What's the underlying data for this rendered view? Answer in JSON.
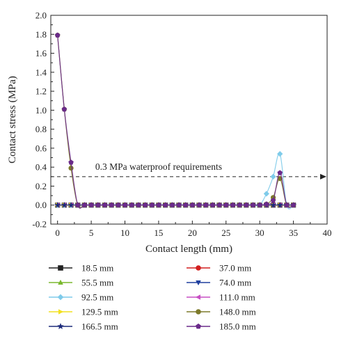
{
  "chart_data": {
    "type": "line",
    "xlabel": "Contact length (mm)",
    "ylabel": "Contact stress (MPa)",
    "xlim": [
      -1,
      40
    ],
    "ylim": [
      -0.2,
      2.0
    ],
    "xticks": [
      0,
      5,
      10,
      15,
      20,
      25,
      30,
      35,
      40
    ],
    "yticks": [
      -0.2,
      0.0,
      0.2,
      0.4,
      0.6,
      0.8,
      1.0,
      1.2,
      1.4,
      1.6,
      1.8,
      2.0
    ],
    "xtick_labels": [
      "0",
      "5",
      "10",
      "15",
      "20",
      "25",
      "30",
      "35",
      "40"
    ],
    "ytick_labels": [
      "-0.2",
      "0.0",
      "0.2",
      "0.4",
      "0.6",
      "0.8",
      "1.0",
      "1.2",
      "1.4",
      "1.6",
      "1.8",
      "2.0"
    ],
    "reference_line": {
      "y": 0.3,
      "label": "0.3 MPa waterproof requirements",
      "style": "dashed",
      "arrow": "right"
    },
    "legend_position": "below",
    "series": [
      {
        "name": "18.5 mm",
        "color": "#222222",
        "marker": "square",
        "x": [
          0,
          1,
          2,
          3,
          4,
          5,
          6,
          7,
          8,
          9,
          10,
          11,
          12,
          13,
          14,
          15,
          16,
          17,
          18,
          19,
          20,
          21,
          22,
          23,
          24,
          25,
          26,
          27,
          28,
          29,
          30,
          31,
          32,
          33,
          34,
          35
        ],
        "y": [
          0,
          0,
          0,
          0,
          0,
          0,
          0,
          0,
          0,
          0,
          0,
          0,
          0,
          0,
          0,
          0,
          0,
          0,
          0,
          0,
          0,
          0,
          0,
          0,
          0,
          0,
          0,
          0,
          0,
          0,
          0,
          0,
          0,
          0,
          0,
          0
        ]
      },
      {
        "name": "37.0 mm",
        "color": "#d21f1f",
        "marker": "circle",
        "x": [
          0,
          1,
          2,
          3,
          4,
          5,
          6,
          7,
          8,
          9,
          10,
          11,
          12,
          13,
          14,
          15,
          16,
          17,
          18,
          19,
          20,
          21,
          22,
          23,
          24,
          25,
          26,
          27,
          28,
          29,
          30,
          31,
          32,
          33,
          34,
          35
        ],
        "y": [
          0,
          0,
          0,
          0,
          0,
          0,
          0,
          0,
          0,
          0,
          0,
          0,
          0,
          0,
          0,
          0,
          0,
          0,
          0,
          0,
          0,
          0,
          0,
          0,
          0,
          0,
          0,
          0,
          0,
          0,
          0,
          0,
          0,
          0,
          0,
          0
        ]
      },
      {
        "name": "55.5 mm",
        "color": "#7ab82e",
        "marker": "triangle-up",
        "x": [
          0,
          1,
          2,
          3,
          4,
          5,
          6,
          7,
          8,
          9,
          10,
          11,
          12,
          13,
          14,
          15,
          16,
          17,
          18,
          19,
          20,
          21,
          22,
          23,
          24,
          25,
          26,
          27,
          28,
          29,
          30,
          31,
          32,
          33,
          34,
          35
        ],
        "y": [
          0,
          0,
          0,
          0,
          0,
          0,
          0,
          0,
          0,
          0,
          0,
          0,
          0,
          0,
          0,
          0,
          0,
          0,
          0,
          0,
          0,
          0,
          0,
          0,
          0,
          0,
          0,
          0,
          0,
          0,
          0,
          0,
          0,
          0,
          0,
          0
        ]
      },
      {
        "name": "74.0 mm",
        "color": "#1f3f9e",
        "marker": "triangle-down",
        "x": [
          0,
          1,
          2,
          3,
          4,
          5,
          6,
          7,
          8,
          9,
          10,
          11,
          12,
          13,
          14,
          15,
          16,
          17,
          18,
          19,
          20,
          21,
          22,
          23,
          24,
          25,
          26,
          27,
          28,
          29,
          30,
          31,
          32,
          33,
          34,
          35
        ],
        "y": [
          0,
          0,
          0,
          0,
          0,
          0,
          0,
          0,
          0,
          0,
          0,
          0,
          0,
          0,
          0,
          0,
          0,
          0,
          0,
          0,
          0,
          0,
          0,
          0,
          0,
          0,
          0,
          0,
          0,
          0,
          0,
          0,
          0,
          0,
          0,
          0
        ]
      },
      {
        "name": "92.5 mm",
        "color": "#7ecbea",
        "marker": "diamond",
        "x": [
          0,
          1,
          2,
          3,
          4,
          5,
          6,
          7,
          8,
          9,
          10,
          11,
          12,
          13,
          14,
          15,
          16,
          17,
          18,
          19,
          20,
          21,
          22,
          23,
          24,
          25,
          26,
          27,
          28,
          29,
          30,
          31,
          32,
          33,
          34,
          35
        ],
        "y": [
          0,
          0,
          0,
          0,
          0,
          0,
          0,
          0,
          0,
          0,
          0,
          0,
          0,
          0,
          0,
          0,
          0,
          0,
          0,
          0,
          0,
          0,
          0,
          0,
          0,
          0,
          0,
          0,
          0,
          0,
          0,
          0.12,
          0.3,
          0.54,
          0,
          0
        ]
      },
      {
        "name": "111.0 mm",
        "color": "#c74fc4",
        "marker": "triangle-left",
        "x": [
          0,
          1,
          2,
          3,
          4,
          5,
          6,
          7,
          8,
          9,
          10,
          11,
          12,
          13,
          14,
          15,
          16,
          17,
          18,
          19,
          20,
          21,
          22,
          23,
          24,
          25,
          26,
          27,
          28,
          29,
          30,
          31,
          32,
          33,
          34,
          35
        ],
        "y": [
          0,
          0,
          0,
          0,
          0,
          0,
          0,
          0,
          0,
          0,
          0,
          0,
          0,
          0,
          0,
          0,
          0,
          0,
          0,
          0,
          0,
          0,
          0,
          0,
          0,
          0,
          0,
          0,
          0,
          0,
          0,
          0,
          0,
          0,
          0,
          0
        ]
      },
      {
        "name": "129.5 mm",
        "color": "#f2e020",
        "marker": "triangle-right",
        "x": [
          0,
          1,
          2,
          3,
          4,
          5,
          6,
          7,
          8,
          9,
          10,
          11,
          12,
          13,
          14,
          15,
          16,
          17,
          18,
          19,
          20,
          21,
          22,
          23,
          24,
          25,
          26,
          27,
          28,
          29,
          30,
          31,
          32,
          33,
          34,
          35
        ],
        "y": [
          0,
          0,
          0,
          0,
          0,
          0,
          0,
          0,
          0,
          0,
          0,
          0,
          0,
          0,
          0,
          0,
          0,
          0,
          0,
          0,
          0,
          0,
          0,
          0,
          0,
          0,
          0,
          0,
          0,
          0,
          0,
          0,
          0,
          0,
          0,
          0
        ]
      },
      {
        "name": "148.0 mm",
        "color": "#7d7a2a",
        "marker": "circle",
        "x": [
          0,
          1,
          2,
          3,
          4,
          5,
          6,
          7,
          8,
          9,
          10,
          11,
          12,
          13,
          14,
          15,
          16,
          17,
          18,
          19,
          20,
          21,
          22,
          23,
          24,
          25,
          26,
          27,
          28,
          29,
          30,
          31,
          32,
          33,
          34,
          35
        ],
        "y": [
          1.79,
          1.01,
          0.39,
          0,
          0,
          0,
          0,
          0,
          0,
          0,
          0,
          0,
          0,
          0,
          0,
          0,
          0,
          0,
          0,
          0,
          0,
          0,
          0,
          0,
          0,
          0,
          0,
          0,
          0,
          0,
          0,
          0.01,
          0.08,
          0.28,
          0,
          0
        ]
      },
      {
        "name": "166.5 mm",
        "color": "#1c2a7a",
        "marker": "star",
        "x": [
          0,
          1,
          2,
          3,
          4,
          5,
          6,
          7,
          8,
          9,
          10,
          11,
          12,
          13,
          14,
          15,
          16,
          17,
          18,
          19,
          20,
          21,
          22,
          23,
          24,
          25,
          26,
          27,
          28,
          29,
          30,
          31,
          32,
          33,
          34,
          35
        ],
        "y": [
          0,
          0,
          0,
          0,
          0,
          0,
          0,
          0,
          0,
          0,
          0,
          0,
          0,
          0,
          0,
          0,
          0,
          0,
          0,
          0,
          0,
          0,
          0,
          0,
          0,
          0,
          0,
          0,
          0,
          0,
          0,
          0,
          0,
          0,
          0,
          0
        ]
      },
      {
        "name": "185.0 mm",
        "color": "#6a2a8a",
        "marker": "pentagon",
        "x": [
          0,
          1,
          2,
          3,
          4,
          5,
          6,
          7,
          8,
          9,
          10,
          11,
          12,
          13,
          14,
          15,
          16,
          17,
          18,
          19,
          20,
          21,
          22,
          23,
          24,
          25,
          26,
          27,
          28,
          29,
          30,
          31,
          32,
          33,
          34,
          35
        ],
        "y": [
          1.79,
          1.01,
          0.45,
          0,
          0,
          0,
          0,
          0,
          0,
          0,
          0,
          0,
          0,
          0,
          0,
          0,
          0,
          0,
          0,
          0,
          0,
          0,
          0,
          0,
          0,
          0,
          0,
          0,
          0,
          0,
          0,
          0.01,
          0.05,
          0.34,
          0,
          0
        ]
      }
    ]
  }
}
